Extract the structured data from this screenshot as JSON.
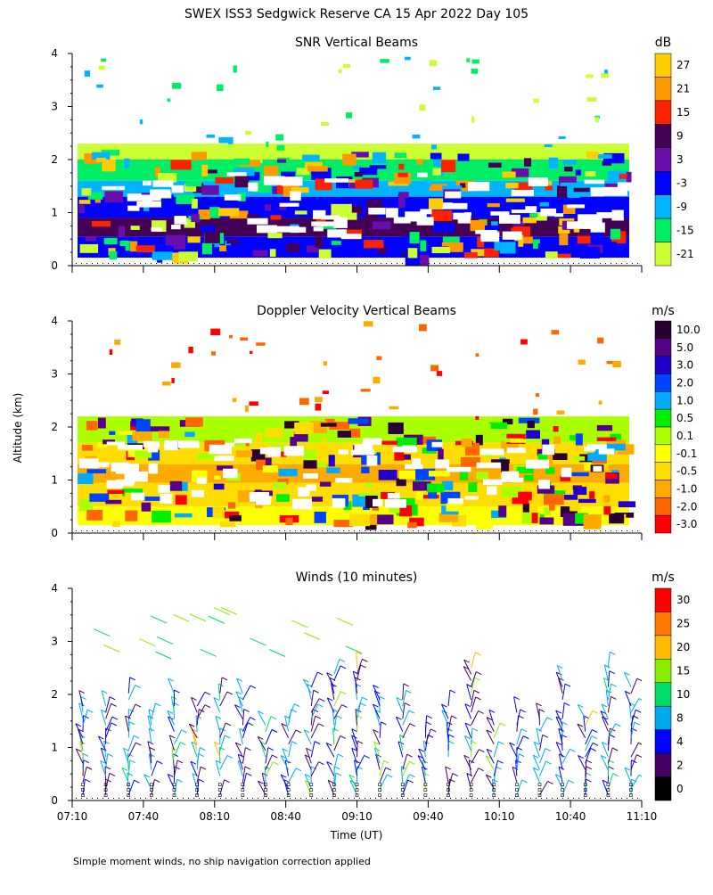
{
  "figure": {
    "title": "SWEX ISS3 Sedgwick Reserve CA  15 Apr 2022 Day 105",
    "ylabel": "Altitude (km)",
    "xlabel": "Time (UT)",
    "footnote": "Simple moment winds, no ship navigation correction applied"
  },
  "chart_data": [
    {
      "type": "heatmap",
      "title": "SNR Vertical Beams",
      "colorbar_unit": "dB",
      "x_tick_labels": [
        "07:10",
        "07:40",
        "08:10",
        "08:40",
        "09:10",
        "09:40",
        "10:10",
        "10:40",
        "11:10"
      ],
      "x_range_hours": [
        7.1667,
        11.1667
      ],
      "y_range_km": [
        0,
        4
      ],
      "y_ticks": [
        0,
        1,
        2,
        3,
        4
      ],
      "colorbar_labels": [
        "27",
        "21",
        "15",
        "9",
        "3",
        "-3",
        "-9",
        "-15",
        "-21"
      ],
      "colorbar_colors": [
        "#ffcc00",
        "#ff9900",
        "#ff2200",
        "#440055",
        "#6a0dad",
        "#0000ff",
        "#00b4ff",
        "#00ee66",
        "#ccff33"
      ],
      "layers_km": [
        {
          "from": 0.15,
          "to": 0.55,
          "color": "#0000ff"
        },
        {
          "from": 0.55,
          "to": 0.9,
          "color": "#440055"
        },
        {
          "from": 0.9,
          "to": 1.3,
          "color": "#0000ff"
        },
        {
          "from": 1.3,
          "to": 1.6,
          "color": "#00b4ff"
        },
        {
          "from": 1.6,
          "to": 2.0,
          "color": "#00ee66"
        },
        {
          "from": 2.0,
          "to": 2.3,
          "color": "#ccff33"
        }
      ]
    },
    {
      "type": "heatmap",
      "title": "Doppler Velocity Vertical Beams",
      "colorbar_unit": "m/s",
      "x_tick_labels": [
        "07:10",
        "07:40",
        "08:10",
        "08:40",
        "09:10",
        "09:40",
        "10:10",
        "10:40",
        "11:10"
      ],
      "x_range_hours": [
        7.1667,
        11.1667
      ],
      "y_range_km": [
        0,
        4
      ],
      "y_ticks": [
        0,
        1,
        2,
        3,
        4
      ],
      "colorbar_labels": [
        "10.0",
        "5.0",
        "3.0",
        "2.0",
        "1.0",
        "0.5",
        "0.1",
        "-0.1",
        "-0.5",
        "-1.0",
        "-2.0",
        "-3.0"
      ],
      "colorbar_colors": [
        "#2a0030",
        "#550088",
        "#2200cc",
        "#0044ff",
        "#00aaff",
        "#00ee00",
        "#aaff00",
        "#ffff00",
        "#ffdd00",
        "#ffaa00",
        "#ff6600",
        "#ff0000"
      ],
      "layers_km": [
        {
          "from": 0.15,
          "to": 0.5,
          "color": "#ffff00"
        },
        {
          "from": 0.5,
          "to": 0.95,
          "color": "#ffdd00"
        },
        {
          "from": 0.95,
          "to": 1.3,
          "color": "#ffaa00"
        },
        {
          "from": 1.3,
          "to": 1.7,
          "color": "#ffdd00"
        },
        {
          "from": 1.7,
          "to": 2.2,
          "color": "#aaff00"
        }
      ]
    },
    {
      "type": "scatter",
      "title": "Winds (10 minutes)",
      "colorbar_unit": "m/s",
      "x_tick_labels": [
        "07:10",
        "07:40",
        "08:10",
        "08:40",
        "09:10",
        "09:40",
        "10:10",
        "10:40",
        "11:10"
      ],
      "x_range_hours": [
        7.1667,
        11.1667
      ],
      "y_range_km": [
        0,
        4
      ],
      "y_ticks": [
        0,
        1,
        2,
        3,
        4
      ],
      "colorbar_labels": [
        "30",
        "25",
        "20",
        "15",
        "10",
        "8",
        "4",
        "2",
        "0"
      ],
      "colorbar_colors": [
        "#ff0000",
        "#ff7700",
        "#ffbb00",
        "#88ee00",
        "#00dd66",
        "#00aaee",
        "#0000ff",
        "#440066",
        "#000000"
      ]
    }
  ]
}
